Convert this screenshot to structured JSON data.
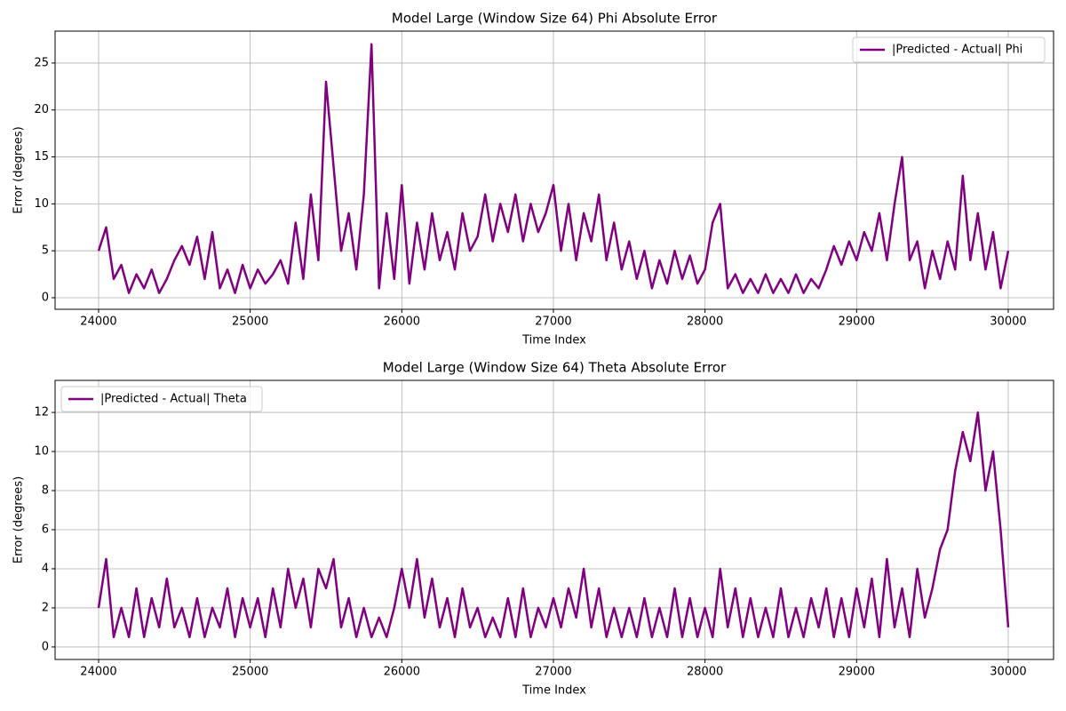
{
  "chart_data": [
    {
      "type": "line",
      "title": "Model Large (Window Size 64) Phi Absolute Error",
      "xlabel": "Time Index",
      "ylabel": "Error (degrees)",
      "x": [
        24000,
        24050,
        24100,
        24150,
        24200,
        24250,
        24300,
        24350,
        24400,
        24450,
        24500,
        24550,
        24600,
        24650,
        24700,
        24750,
        24800,
        24850,
        24900,
        24950,
        25000,
        25050,
        25100,
        25150,
        25200,
        25250,
        25300,
        25350,
        25400,
        25450,
        25500,
        25550,
        25600,
        25650,
        25700,
        25750,
        25800,
        25850,
        25900,
        25950,
        26000,
        26050,
        26100,
        26150,
        26200,
        26250,
        26300,
        26350,
        26400,
        26450,
        26500,
        26550,
        26600,
        26650,
        26700,
        26750,
        26800,
        26850,
        26900,
        26950,
        27000,
        27050,
        27100,
        27150,
        27200,
        27250,
        27300,
        27350,
        27400,
        27450,
        27500,
        27550,
        27600,
        27650,
        27700,
        27750,
        27800,
        27850,
        27900,
        27950,
        28000,
        28050,
        28100,
        28150,
        28200,
        28250,
        28300,
        28350,
        28400,
        28450,
        28500,
        28550,
        28600,
        28650,
        28700,
        28750,
        28800,
        28850,
        28900,
        28950,
        29000,
        29050,
        29100,
        29150,
        29200,
        29250,
        29300,
        29350,
        29400,
        29450,
        29500,
        29550,
        29600,
        29650,
        29700,
        29750,
        29800,
        29850,
        29900,
        29950,
        30000
      ],
      "series": [
        {
          "name": "|Predicted - Actual| Phi",
          "color": "#800080",
          "values": [
            5,
            7.5,
            2,
            3.5,
            0.5,
            2.5,
            1,
            3,
            0.5,
            2,
            4,
            5.5,
            3.5,
            6.5,
            2,
            7,
            1,
            3,
            0.5,
            3.5,
            1,
            3,
            1.5,
            2.5,
            4,
            1.5,
            8,
            2,
            11,
            4,
            23,
            14,
            5,
            9,
            3,
            11,
            27,
            1,
            9,
            2,
            12,
            1.5,
            8,
            3,
            9,
            4,
            7,
            3,
            9,
            5,
            6.5,
            11,
            6,
            10,
            7,
            11,
            6,
            10,
            7,
            9,
            12,
            5,
            10,
            4,
            9,
            6,
            11,
            4,
            8,
            3,
            6,
            2,
            5,
            1,
            4,
            1.5,
            5,
            2,
            4.5,
            1.5,
            3,
            8,
            10,
            1,
            2.5,
            0.5,
            2,
            0.5,
            2.5,
            0.5,
            2,
            0.5,
            2.5,
            0.5,
            2,
            1,
            3,
            5.5,
            3.5,
            6,
            4,
            7,
            5,
            9,
            4,
            10,
            15,
            4,
            6,
            1,
            5,
            2,
            6,
            3,
            13,
            4,
            9,
            3,
            7,
            1,
            5
          ]
        }
      ],
      "xlim": [
        23713,
        30299
      ],
      "xticks": [
        24000,
        25000,
        26000,
        27000,
        28000,
        29000,
        30000
      ],
      "ylim": [
        -1.23,
        28.4
      ],
      "yticks": [
        0,
        5,
        10,
        15,
        20,
        25
      ],
      "grid": true,
      "legend": "upper right"
    },
    {
      "type": "line",
      "title": "Model Large (Window Size 64) Theta Absolute Error",
      "xlabel": "Time Index",
      "ylabel": "Error (degrees)",
      "x": [
        24000,
        24050,
        24100,
        24150,
        24200,
        24250,
        24300,
        24350,
        24400,
        24450,
        24500,
        24550,
        24600,
        24650,
        24700,
        24750,
        24800,
        24850,
        24900,
        24950,
        25000,
        25050,
        25100,
        25150,
        25200,
        25250,
        25300,
        25350,
        25400,
        25450,
        25500,
        25550,
        25600,
        25650,
        25700,
        25750,
        25800,
        25850,
        25900,
        25950,
        26000,
        26050,
        26100,
        26150,
        26200,
        26250,
        26300,
        26350,
        26400,
        26450,
        26500,
        26550,
        26600,
        26650,
        26700,
        26750,
        26800,
        26850,
        26900,
        26950,
        27000,
        27050,
        27100,
        27150,
        27200,
        27250,
        27300,
        27350,
        27400,
        27450,
        27500,
        27550,
        27600,
        27650,
        27700,
        27750,
        27800,
        27850,
        27900,
        27950,
        28000,
        28050,
        28100,
        28150,
        28200,
        28250,
        28300,
        28350,
        28400,
        28450,
        28500,
        28550,
        28600,
        28650,
        28700,
        28750,
        28800,
        28850,
        28900,
        28950,
        29000,
        29050,
        29100,
        29150,
        29200,
        29250,
        29300,
        29350,
        29400,
        29450,
        29500,
        29550,
        29600,
        29650,
        29700,
        29750,
        29800,
        29850,
        29900,
        29950,
        30000
      ],
      "series": [
        {
          "name": "|Predicted - Actual| Theta",
          "color": "#800080",
          "values": [
            2,
            4.5,
            0.5,
            2,
            0.5,
            3,
            0.5,
            2.5,
            1,
            3.5,
            1,
            2,
            0.5,
            2.5,
            0.5,
            2,
            1,
            3,
            0.5,
            2.5,
            1,
            2.5,
            0.5,
            3,
            1,
            4,
            2,
            3.5,
            1,
            4,
            3,
            4.5,
            1,
            2.5,
            0.5,
            2,
            0.5,
            1.5,
            0.5,
            2,
            4,
            2,
            4.5,
            1.5,
            3.5,
            1,
            2.5,
            0.5,
            3,
            1,
            2,
            0.5,
            1.5,
            0.5,
            2.5,
            0.5,
            3,
            0.5,
            2,
            1,
            2.5,
            1,
            3,
            1.5,
            4,
            1,
            3,
            0.5,
            2,
            0.5,
            2,
            0.5,
            2.5,
            0.5,
            2,
            0.5,
            3,
            0.5,
            2.5,
            0.5,
            2,
            0.5,
            4,
            1,
            3,
            0.5,
            2.5,
            0.5,
            2,
            0.5,
            3,
            0.5,
            2,
            0.5,
            2.5,
            1,
            3,
            0.5,
            2.5,
            0.5,
            3,
            1,
            3.5,
            0.5,
            4.5,
            1,
            3,
            0.5,
            4,
            1.5,
            3,
            5,
            6,
            9,
            11,
            9.5,
            12,
            8,
            10,
            6,
            1
          ]
        }
      ],
      "xlim": [
        23713,
        30299
      ],
      "xticks": [
        24000,
        25000,
        26000,
        27000,
        28000,
        29000,
        30000
      ],
      "ylim": [
        -0.64,
        13.64
      ],
      "yticks": [
        0,
        2,
        4,
        6,
        8,
        10,
        12
      ],
      "grid": true,
      "legend": "upper left"
    }
  ]
}
